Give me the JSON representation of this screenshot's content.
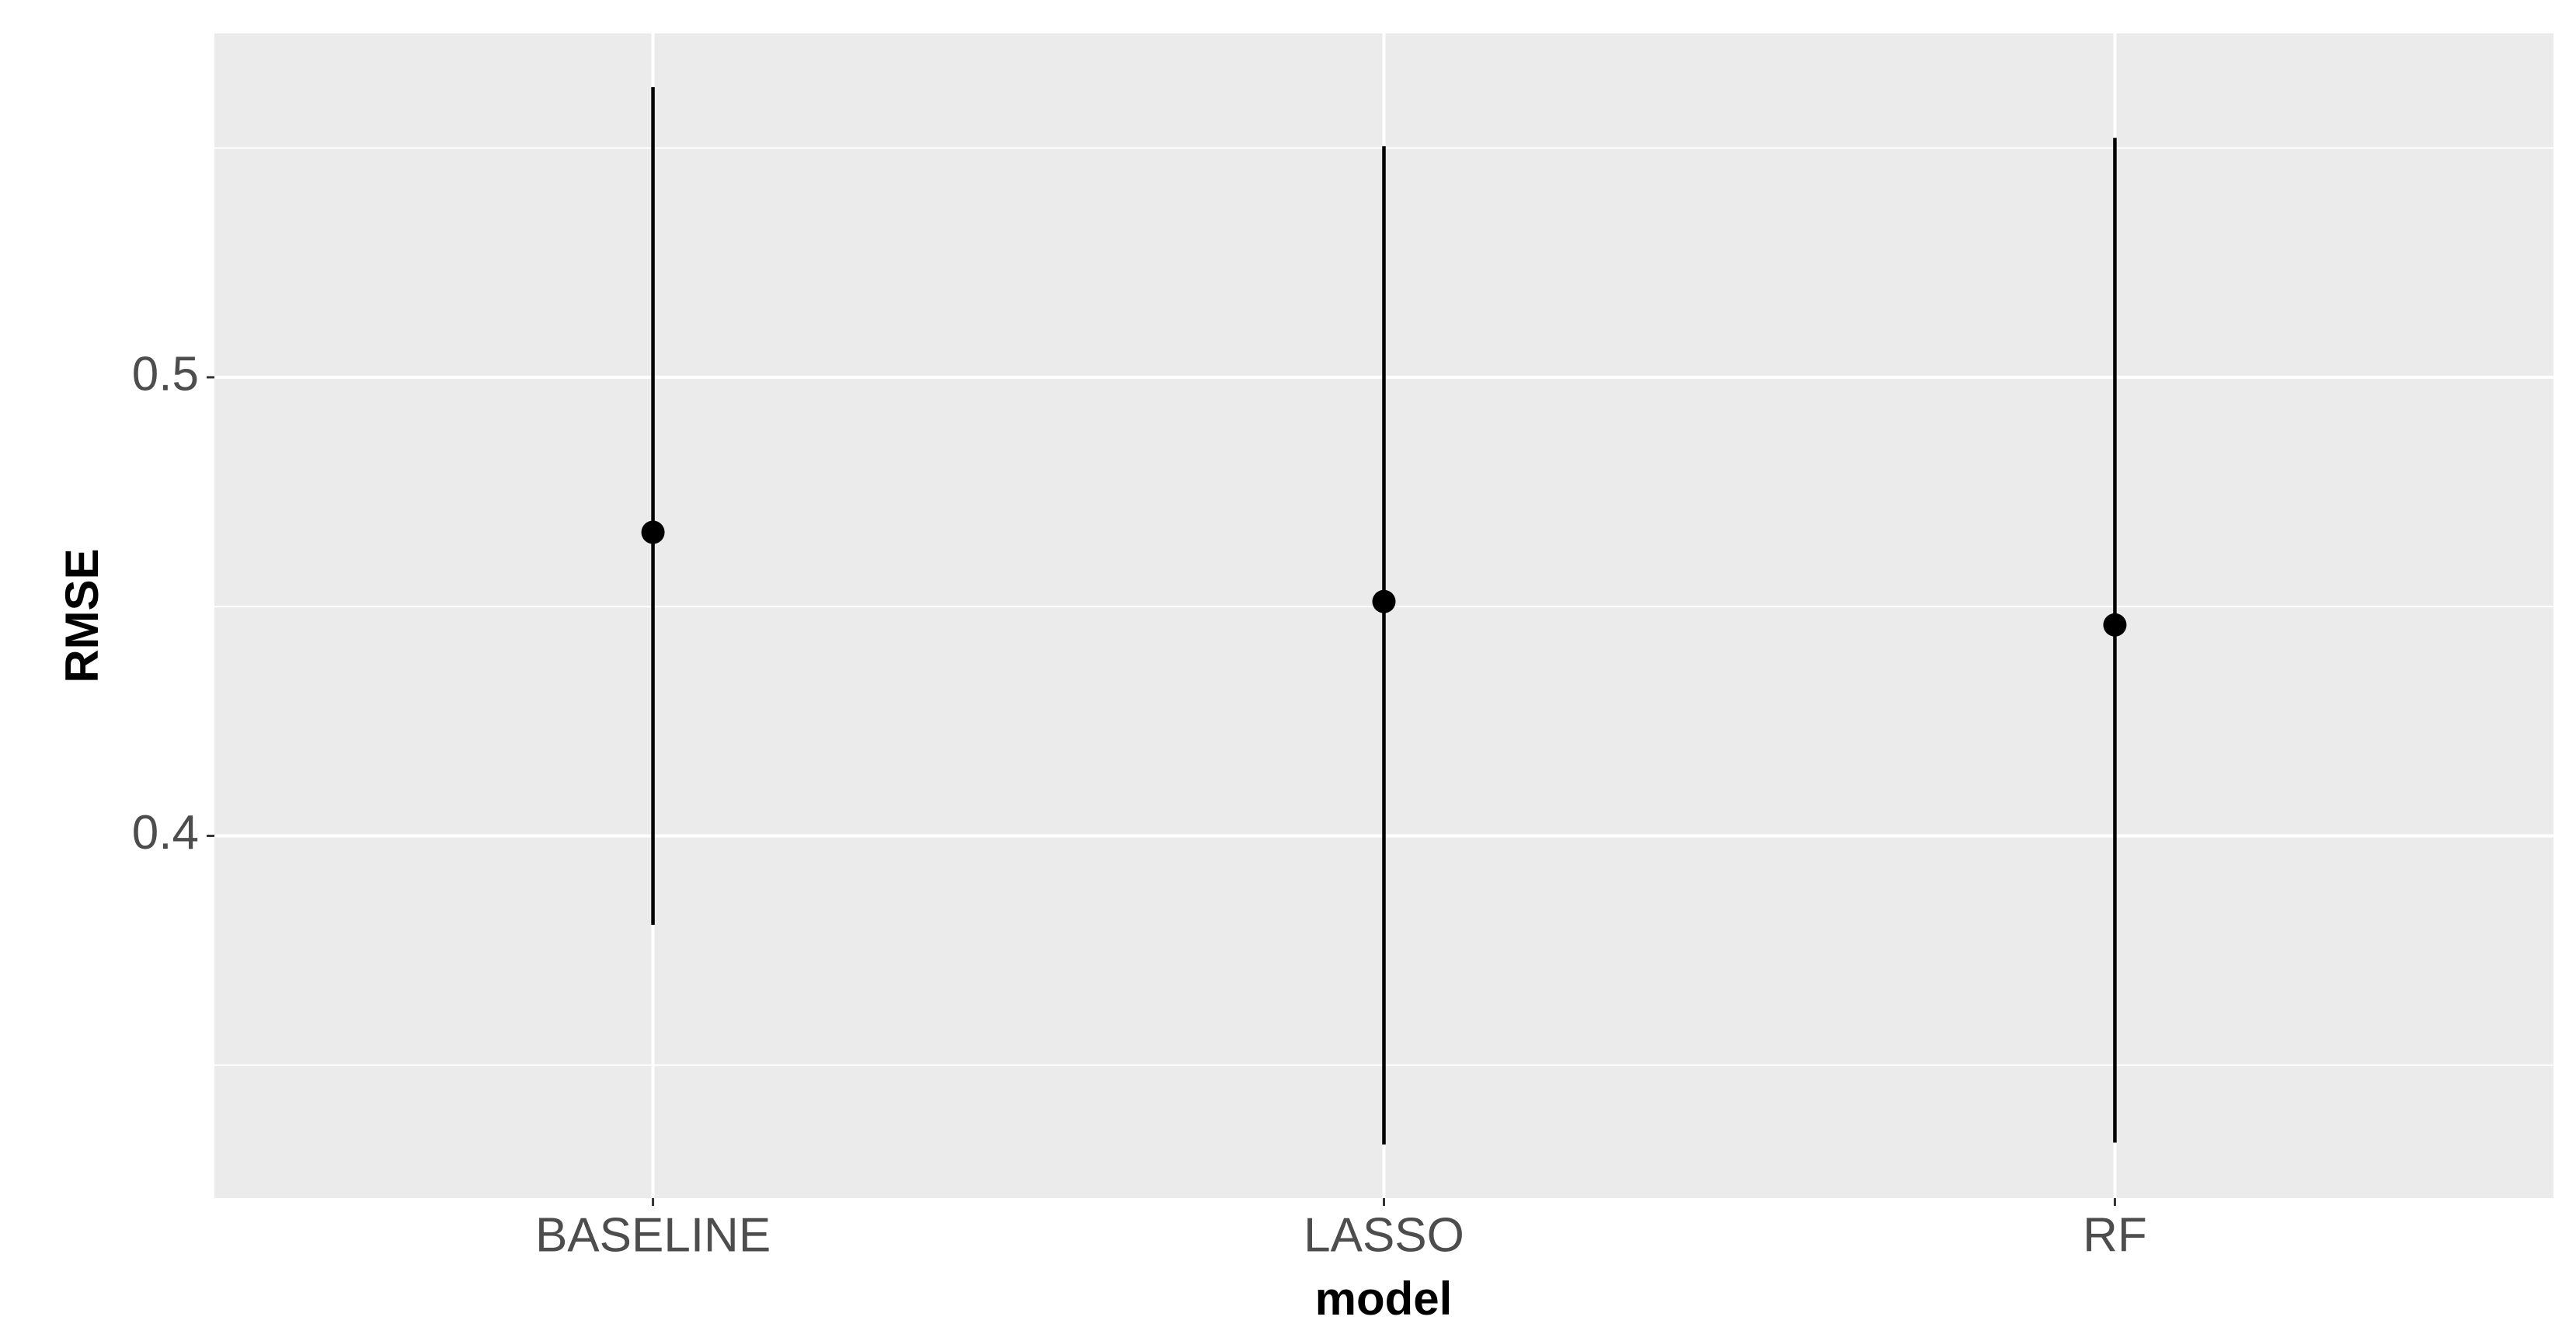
{
  "chart_data": {
    "type": "pointrange",
    "x_label": "model",
    "y_label": "RMSE",
    "categories": [
      "BASELINE",
      "LASSO",
      "RF"
    ],
    "series": [
      {
        "name": "RMSE",
        "color": "#000000",
        "values": [
          0.4662,
          0.4511,
          0.446
        ],
        "lower": [
          0.3806,
          0.3327,
          0.3331
        ],
        "upper": [
          0.5633,
          0.5504,
          0.5522
        ]
      }
    ],
    "ylim": [
      0.321,
      0.575
    ],
    "yticks": [
      0.4,
      0.5
    ],
    "minor_yticks": [
      0.35,
      0.45,
      0.55
    ],
    "grid": true,
    "panel_color": "#ebebeb"
  }
}
